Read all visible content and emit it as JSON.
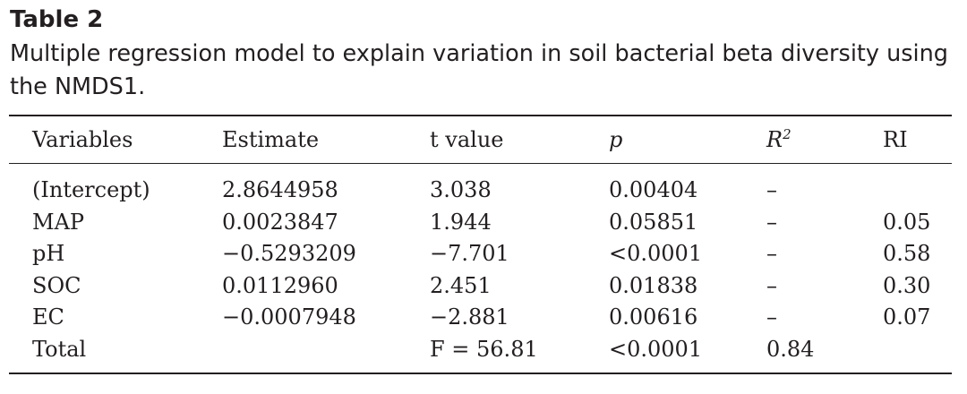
{
  "table_label": "Table 2",
  "caption": "Multiple regression model to explain variation in soil bacterial beta diversity using the NMDS1.",
  "headers": {
    "variables": "Variables",
    "estimate": "Estimate",
    "t_value": "t value",
    "p": "p",
    "r2_base": "R",
    "r2_sup": "2",
    "ri": "RI"
  },
  "rows": [
    {
      "variable": "(Intercept)",
      "estimate": "2.8644958",
      "t_value": "3.038",
      "p": "0.00404",
      "r2": "–",
      "ri": ""
    },
    {
      "variable": "MAP",
      "estimate": "0.0023847",
      "t_value": "1.944",
      "p": "0.05851",
      "r2": "–",
      "ri": "0.05"
    },
    {
      "variable": "pH",
      "estimate": "−0.5293209",
      "t_value": "−7.701",
      "p": "<0.0001",
      "r2": "–",
      "ri": "0.58"
    },
    {
      "variable": "SOC",
      "estimate": "0.0112960",
      "t_value": "2.451",
      "p": "0.01838",
      "r2": "–",
      "ri": "0.30"
    },
    {
      "variable": "EC",
      "estimate": "−0.0007948",
      "t_value": "−2.881",
      "p": "0.00616",
      "r2": "–",
      "ri": "0.07"
    },
    {
      "variable": "Total",
      "estimate": "",
      "t_value": "F = 56.81",
      "p": "<0.0001",
      "r2": "0.84",
      "ri": ""
    }
  ]
}
